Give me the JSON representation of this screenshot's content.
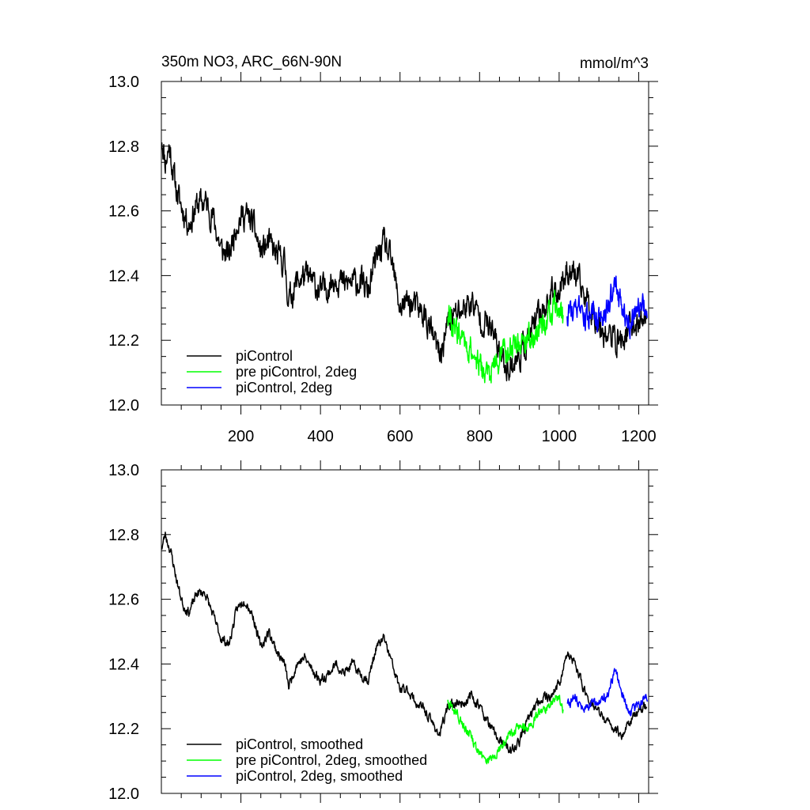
{
  "chart_data": [
    {
      "type": "line",
      "title": "350m NO3, ARC_66N-90N",
      "units": "mmol/m^3",
      "xlim": [
        0,
        1225
      ],
      "ylim": [
        12.0,
        13.0
      ],
      "x_ticks": [
        200,
        400,
        600,
        800,
        1000,
        1200
      ],
      "x_tick_labels": [
        "200",
        "400",
        "600",
        "800",
        "1000",
        "1200"
      ],
      "y_ticks": [
        12.0,
        12.2,
        12.4,
        12.6,
        12.8,
        13.0
      ],
      "y_tick_labels": [
        "12.0",
        "12.2",
        "12.4",
        "12.6",
        "12.8",
        "13.0"
      ],
      "legend_position": "bottom-left",
      "noise": 0.035,
      "seed": 11,
      "series": [
        {
          "name": "piControl",
          "color": "#000000",
          "x_range": [
            1,
            1220
          ],
          "anchors": [
            [
              1,
              12.83
            ],
            [
              10,
              12.75
            ],
            [
              20,
              12.8
            ],
            [
              30,
              12.72
            ],
            [
              40,
              12.65
            ],
            [
              55,
              12.6
            ],
            [
              70,
              12.56
            ],
            [
              90,
              12.62
            ],
            [
              110,
              12.63
            ],
            [
              130,
              12.58
            ],
            [
              150,
              12.48
            ],
            [
              170,
              12.46
            ],
            [
              190,
              12.57
            ],
            [
              210,
              12.59
            ],
            [
              230,
              12.56
            ],
            [
              250,
              12.47
            ],
            [
              270,
              12.5
            ],
            [
              290,
              12.46
            ],
            [
              310,
              12.44
            ],
            [
              320,
              12.32
            ],
            [
              340,
              12.38
            ],
            [
              360,
              12.4
            ],
            [
              380,
              12.38
            ],
            [
              400,
              12.35
            ],
            [
              420,
              12.37
            ],
            [
              440,
              12.4
            ],
            [
              460,
              12.37
            ],
            [
              480,
              12.38
            ],
            [
              500,
              12.38
            ],
            [
              520,
              12.35
            ],
            [
              540,
              12.45
            ],
            [
              560,
              12.5
            ],
            [
              580,
              12.43
            ],
            [
              600,
              12.3
            ],
            [
              620,
              12.32
            ],
            [
              640,
              12.3
            ],
            [
              660,
              12.28
            ],
            [
              680,
              12.22
            ],
            [
              700,
              12.15
            ],
            [
              720,
              12.25
            ],
            [
              740,
              12.28
            ],
            [
              760,
              12.3
            ],
            [
              780,
              12.32
            ],
            [
              800,
              12.27
            ],
            [
              820,
              12.25
            ],
            [
              840,
              12.2
            ],
            [
              860,
              12.13
            ],
            [
              880,
              12.12
            ],
            [
              900,
              12.15
            ],
            [
              920,
              12.2
            ],
            [
              940,
              12.25
            ],
            [
              960,
              12.3
            ],
            [
              980,
              12.34
            ],
            [
              1000,
              12.36
            ],
            [
              1020,
              12.42
            ],
            [
              1040,
              12.4
            ],
            [
              1060,
              12.35
            ],
            [
              1080,
              12.3
            ],
            [
              1100,
              12.25
            ],
            [
              1120,
              12.22
            ],
            [
              1140,
              12.2
            ],
            [
              1160,
              12.2
            ],
            [
              1180,
              12.24
            ],
            [
              1200,
              12.25
            ],
            [
              1220,
              12.28
            ]
          ]
        },
        {
          "name": "pre piControl, 2deg",
          "color": "#00ff00",
          "x_range": [
            720,
            1010
          ],
          "anchors": [
            [
              720,
              12.28
            ],
            [
              740,
              12.24
            ],
            [
              760,
              12.2
            ],
            [
              780,
              12.17
            ],
            [
              800,
              12.12
            ],
            [
              820,
              12.09
            ],
            [
              840,
              12.12
            ],
            [
              860,
              12.16
            ],
            [
              880,
              12.18
            ],
            [
              900,
              12.2
            ],
            [
              920,
              12.2
            ],
            [
              940,
              12.22
            ],
            [
              960,
              12.25
            ],
            [
              980,
              12.28
            ],
            [
              1000,
              12.3
            ],
            [
              1010,
              12.27
            ]
          ]
        },
        {
          "name": "piControl, 2deg",
          "color": "#0000ff",
          "x_range": [
            1020,
            1222
          ],
          "anchors": [
            [
              1020,
              12.28
            ],
            [
              1040,
              12.3
            ],
            [
              1060,
              12.26
            ],
            [
              1080,
              12.28
            ],
            [
              1100,
              12.27
            ],
            [
              1120,
              12.3
            ],
            [
              1140,
              12.36
            ],
            [
              1160,
              12.3
            ],
            [
              1180,
              12.25
            ],
            [
              1200,
              12.28
            ],
            [
              1222,
              12.31
            ]
          ]
        }
      ]
    },
    {
      "type": "line",
      "xlim": [
        0,
        1225
      ],
      "ylim": [
        12.0,
        13.0
      ],
      "y_ticks": [
        12.0,
        12.2,
        12.4,
        12.6,
        12.8,
        13.0
      ],
      "y_tick_labels": [
        "12.0",
        "12.2",
        "12.4",
        "12.6",
        "12.8",
        "13.0"
      ],
      "legend_position": "bottom-left",
      "noise": 0.012,
      "seed": 23,
      "series": [
        {
          "name": "piControl, smoothed",
          "color": "#000000",
          "x_range": [
            1,
            1220
          ],
          "anchors": [
            [
              1,
              12.76
            ],
            [
              10,
              12.8
            ],
            [
              25,
              12.74
            ],
            [
              40,
              12.65
            ],
            [
              55,
              12.58
            ],
            [
              70,
              12.56
            ],
            [
              90,
              12.62
            ],
            [
              110,
              12.62
            ],
            [
              130,
              12.55
            ],
            [
              150,
              12.48
            ],
            [
              170,
              12.46
            ],
            [
              190,
              12.57
            ],
            [
              210,
              12.6
            ],
            [
              230,
              12.55
            ],
            [
              250,
              12.45
            ],
            [
              270,
              12.5
            ],
            [
              290,
              12.44
            ],
            [
              310,
              12.4
            ],
            [
              320,
              12.33
            ],
            [
              340,
              12.4
            ],
            [
              360,
              12.42
            ],
            [
              380,
              12.38
            ],
            [
              400,
              12.35
            ],
            [
              420,
              12.37
            ],
            [
              440,
              12.4
            ],
            [
              460,
              12.37
            ],
            [
              480,
              12.4
            ],
            [
              500,
              12.37
            ],
            [
              520,
              12.35
            ],
            [
              540,
              12.45
            ],
            [
              560,
              12.48
            ],
            [
              580,
              12.4
            ],
            [
              600,
              12.32
            ],
            [
              620,
              12.32
            ],
            [
              640,
              12.28
            ],
            [
              660,
              12.26
            ],
            [
              680,
              12.22
            ],
            [
              700,
              12.18
            ],
            [
              720,
              12.27
            ],
            [
              740,
              12.28
            ],
            [
              760,
              12.28
            ],
            [
              780,
              12.3
            ],
            [
              800,
              12.27
            ],
            [
              820,
              12.22
            ],
            [
              840,
              12.18
            ],
            [
              860,
              12.15
            ],
            [
              880,
              12.13
            ],
            [
              900,
              12.16
            ],
            [
              920,
              12.22
            ],
            [
              940,
              12.27
            ],
            [
              960,
              12.3
            ],
            [
              980,
              12.3
            ],
            [
              1000,
              12.34
            ],
            [
              1020,
              12.43
            ],
            [
              1040,
              12.4
            ],
            [
              1060,
              12.33
            ],
            [
              1080,
              12.28
            ],
            [
              1100,
              12.25
            ],
            [
              1120,
              12.22
            ],
            [
              1140,
              12.2
            ],
            [
              1160,
              12.18
            ],
            [
              1180,
              12.23
            ],
            [
              1200,
              12.25
            ],
            [
              1220,
              12.28
            ]
          ]
        },
        {
          "name": "pre piControl, 2deg, smoothed",
          "color": "#00ff00",
          "x_range": [
            720,
            1010
          ],
          "anchors": [
            [
              720,
              12.28
            ],
            [
              740,
              12.25
            ],
            [
              760,
              12.21
            ],
            [
              780,
              12.17
            ],
            [
              800,
              12.12
            ],
            [
              820,
              12.1
            ],
            [
              840,
              12.12
            ],
            [
              860,
              12.16
            ],
            [
              880,
              12.19
            ],
            [
              900,
              12.21
            ],
            [
              920,
              12.2
            ],
            [
              940,
              12.23
            ],
            [
              960,
              12.26
            ],
            [
              980,
              12.28
            ],
            [
              1000,
              12.3
            ],
            [
              1010,
              12.26
            ]
          ]
        },
        {
          "name": "piControl, 2deg, smoothed",
          "color": "#0000ff",
          "x_range": [
            1020,
            1222
          ],
          "anchors": [
            [
              1020,
              12.27
            ],
            [
              1040,
              12.3
            ],
            [
              1060,
              12.26
            ],
            [
              1080,
              12.27
            ],
            [
              1100,
              12.28
            ],
            [
              1120,
              12.3
            ],
            [
              1140,
              12.38
            ],
            [
              1160,
              12.3
            ],
            [
              1180,
              12.25
            ],
            [
              1200,
              12.27
            ],
            [
              1222,
              12.3
            ]
          ]
        }
      ]
    }
  ]
}
